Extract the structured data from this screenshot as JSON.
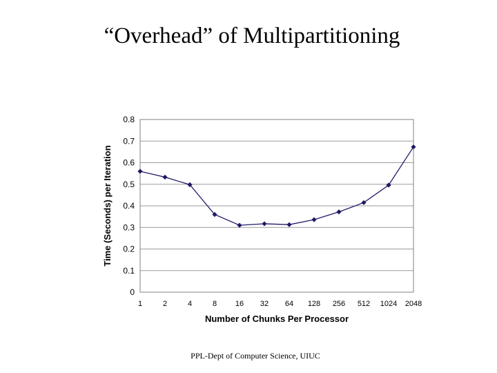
{
  "slide": {
    "title": "“Overhead” of Multipartitioning",
    "footer": "PPL-Dept of Computer Science, UIUC"
  },
  "chart_data": {
    "type": "line",
    "xlabel": "Number of Chunks Per Processor",
    "ylabel": "Time (Seconds) per Iteration",
    "categories": [
      "1",
      "2",
      "4",
      "8",
      "16",
      "32",
      "64",
      "128",
      "256",
      "512",
      "1024",
      "2048"
    ],
    "values": [
      0.56,
      0.533,
      0.498,
      0.36,
      0.31,
      0.317,
      0.313,
      0.336,
      0.372,
      0.415,
      0.496,
      0.673
    ],
    "ylim": [
      0,
      0.8
    ],
    "yticks": [
      "0",
      "0.1",
      "0.2",
      "0.3",
      "0.4",
      "0.5",
      "0.6",
      "0.7",
      "0.8"
    ],
    "grid": true,
    "legend": "none",
    "line_color": "#1f1a66",
    "marker": "diamond"
  }
}
